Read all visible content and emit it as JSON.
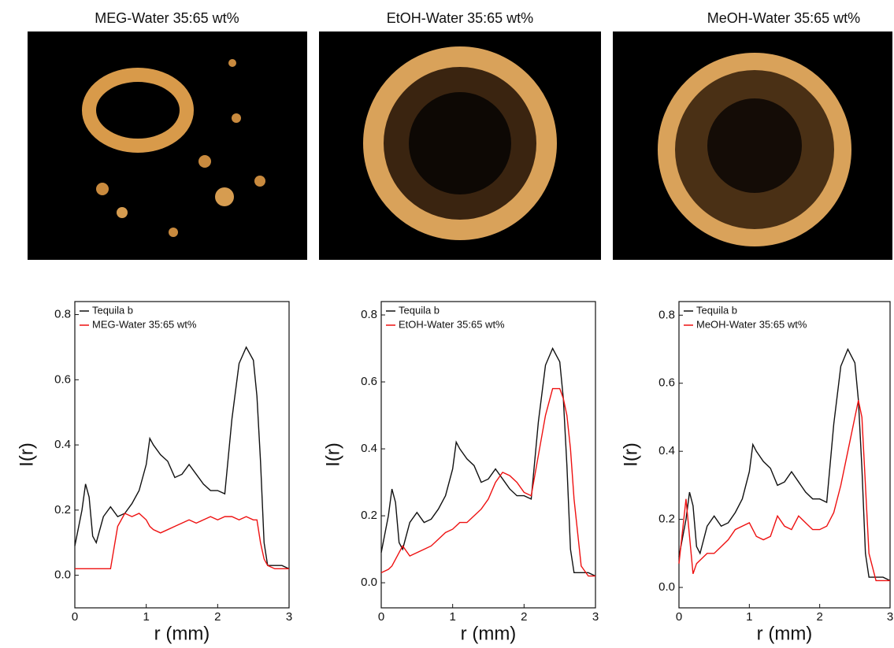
{
  "images": [
    {
      "title": "MEG-Water 35:65 wt%"
    },
    {
      "title": "EtOH-Water 35:65 wt%"
    },
    {
      "title": "MeOH-Water 35:65 wt%"
    }
  ],
  "chart_data": [
    {
      "type": "line",
      "xlabel": "r (mm)",
      "ylabel": "I(r)",
      "xlim": [
        0,
        3
      ],
      "xticks": [
        0,
        1,
        2,
        3
      ],
      "ylim": [
        -0.1,
        0.84
      ],
      "yticks": [
        {
          "value": 0,
          "label": "0.0"
        },
        0.2,
        0.4,
        0.6,
        0.8
      ],
      "legend": "upper-left",
      "x": [
        0,
        0.1,
        0.15,
        0.2,
        0.25,
        0.3,
        0.4,
        0.5,
        0.6,
        0.7,
        0.8,
        0.9,
        1.0,
        1.05,
        1.1,
        1.2,
        1.3,
        1.4,
        1.5,
        1.6,
        1.7,
        1.8,
        1.9,
        2.0,
        2.1,
        2.2,
        2.3,
        2.4,
        2.5,
        2.55,
        2.6,
        2.65,
        2.7,
        2.8,
        2.9,
        3.0
      ],
      "series": [
        {
          "name": "Tequila b",
          "color": "#111111",
          "values": [
            0.09,
            0.2,
            0.28,
            0.24,
            0.12,
            0.1,
            0.18,
            0.21,
            0.18,
            0.19,
            0.22,
            0.26,
            0.34,
            0.42,
            0.4,
            0.37,
            0.35,
            0.3,
            0.31,
            0.34,
            0.31,
            0.28,
            0.26,
            0.26,
            0.25,
            0.48,
            0.65,
            0.7,
            0.66,
            0.55,
            0.35,
            0.1,
            0.03,
            0.03,
            0.03,
            0.02
          ]
        },
        {
          "name": "MEG-Water 35:65 wt%",
          "color": "#ee1111",
          "values": [
            0.02,
            0.02,
            0.02,
            0.02,
            0.02,
            0.02,
            0.02,
            0.02,
            0.15,
            0.19,
            0.18,
            0.19,
            0.17,
            0.15,
            0.14,
            0.13,
            0.14,
            0.15,
            0.16,
            0.17,
            0.16,
            0.17,
            0.18,
            0.17,
            0.18,
            0.18,
            0.17,
            0.18,
            0.17,
            0.17,
            0.1,
            0.05,
            0.03,
            0.02,
            0.02,
            0.02
          ]
        }
      ]
    },
    {
      "type": "line",
      "xlabel": "r (mm)",
      "ylabel": "I(r)",
      "xlim": [
        0,
        3
      ],
      "xticks": [
        0,
        1,
        2,
        3
      ],
      "ylim": [
        -0.075,
        0.84
      ],
      "yticks": [
        {
          "value": 0,
          "label": "0.0"
        },
        0.2,
        0.4,
        0.6,
        0.8
      ],
      "legend": "upper-left",
      "x": [
        0,
        0.1,
        0.15,
        0.2,
        0.25,
        0.3,
        0.4,
        0.5,
        0.6,
        0.7,
        0.8,
        0.9,
        1.0,
        1.05,
        1.1,
        1.2,
        1.3,
        1.4,
        1.5,
        1.6,
        1.7,
        1.8,
        1.9,
        2.0,
        2.1,
        2.2,
        2.3,
        2.4,
        2.5,
        2.55,
        2.6,
        2.65,
        2.7,
        2.8,
        2.9,
        3.0
      ],
      "series": [
        {
          "name": "Tequila b",
          "color": "#111111",
          "values": [
            0.09,
            0.2,
            0.28,
            0.24,
            0.12,
            0.1,
            0.18,
            0.21,
            0.18,
            0.19,
            0.22,
            0.26,
            0.34,
            0.42,
            0.4,
            0.37,
            0.35,
            0.3,
            0.31,
            0.34,
            0.31,
            0.28,
            0.26,
            0.26,
            0.25,
            0.48,
            0.65,
            0.7,
            0.66,
            0.55,
            0.35,
            0.1,
            0.03,
            0.03,
            0.03,
            0.02
          ]
        },
        {
          "name": "EtOH-Water 35:65 wt%",
          "color": "#ee1111",
          "values": [
            0.03,
            0.04,
            0.05,
            0.07,
            0.09,
            0.11,
            0.08,
            0.09,
            0.1,
            0.11,
            0.13,
            0.15,
            0.16,
            0.17,
            0.18,
            0.18,
            0.2,
            0.22,
            0.25,
            0.3,
            0.33,
            0.32,
            0.3,
            0.27,
            0.26,
            0.38,
            0.5,
            0.58,
            0.58,
            0.55,
            0.5,
            0.4,
            0.25,
            0.05,
            0.02,
            0.02
          ]
        }
      ]
    },
    {
      "type": "line",
      "xlabel": "r (mm)",
      "ylabel": "I(r)",
      "xlim": [
        0,
        3
      ],
      "xticks": [
        0,
        1,
        2,
        3
      ],
      "ylim": [
        -0.06,
        0.84
      ],
      "yticks": [
        {
          "value": 0,
          "label": "0.0"
        },
        0.2,
        0.4,
        0.6,
        0.8
      ],
      "legend": "upper-left",
      "x": [
        0,
        0.1,
        0.15,
        0.2,
        0.25,
        0.3,
        0.4,
        0.5,
        0.6,
        0.7,
        0.8,
        0.9,
        1.0,
        1.05,
        1.1,
        1.2,
        1.3,
        1.4,
        1.5,
        1.6,
        1.7,
        1.8,
        1.9,
        2.0,
        2.1,
        2.2,
        2.3,
        2.4,
        2.5,
        2.55,
        2.6,
        2.65,
        2.7,
        2.8,
        2.9,
        3.0
      ],
      "series": [
        {
          "name": "Tequila b",
          "color": "#111111",
          "values": [
            0.09,
            0.2,
            0.28,
            0.24,
            0.12,
            0.1,
            0.18,
            0.21,
            0.18,
            0.19,
            0.22,
            0.26,
            0.34,
            0.42,
            0.4,
            0.37,
            0.35,
            0.3,
            0.31,
            0.34,
            0.31,
            0.28,
            0.26,
            0.26,
            0.25,
            0.48,
            0.65,
            0.7,
            0.66,
            0.55,
            0.35,
            0.1,
            0.03,
            0.03,
            0.03,
            0.02
          ]
        },
        {
          "name": "MeOH-Water 35:65 wt%",
          "color": "#ee1111",
          "values": [
            0.07,
            0.26,
            0.15,
            0.04,
            0.07,
            0.08,
            0.1,
            0.1,
            0.12,
            0.14,
            0.17,
            0.18,
            0.19,
            0.17,
            0.15,
            0.14,
            0.15,
            0.21,
            0.18,
            0.17,
            0.21,
            0.19,
            0.17,
            0.17,
            0.18,
            0.22,
            0.3,
            0.4,
            0.5,
            0.55,
            0.5,
            0.3,
            0.1,
            0.02,
            0.02,
            0.02
          ]
        }
      ]
    }
  ]
}
